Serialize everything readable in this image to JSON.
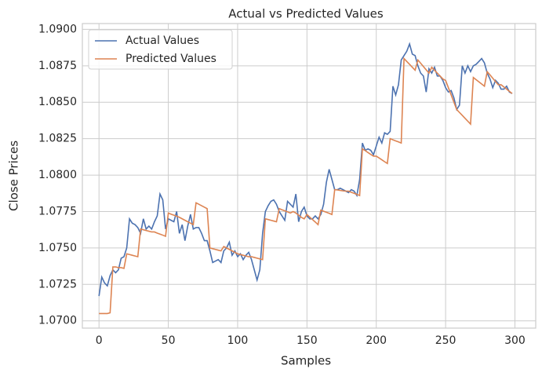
{
  "chart_data": {
    "type": "line",
    "title": "Actual vs Predicted Values",
    "x_label": "Samples",
    "y_label": "Close Prices",
    "grid": true,
    "legend": "upper left",
    "xlim": [
      -12,
      315
    ],
    "ylim": [
      1.0695,
      1.0904
    ],
    "xticks": [
      0,
      50,
      100,
      150,
      200,
      250,
      300
    ],
    "yticks": [
      {
        "value": 1.07,
        "label": "1.0700"
      },
      {
        "value": 1.0725,
        "label": "1.0725"
      },
      {
        "value": 1.075,
        "label": "1.0750"
      },
      {
        "value": 1.0775,
        "label": "1.0775"
      },
      {
        "value": 1.08,
        "label": "1.0800"
      },
      {
        "value": 1.0825,
        "label": "1.0825"
      },
      {
        "value": 1.085,
        "label": "1.0850"
      },
      {
        "value": 1.0875,
        "label": "1.0875"
      },
      {
        "value": 1.09,
        "label": "1.0900"
      }
    ],
    "x": [
      0,
      2,
      4,
      6,
      8,
      10,
      12,
      14,
      16,
      18,
      20,
      22,
      24,
      26,
      28,
      30,
      32,
      34,
      36,
      38,
      40,
      42,
      44,
      46,
      48,
      50,
      52,
      54,
      56,
      58,
      60,
      62,
      64,
      66,
      68,
      70,
      72,
      74,
      76,
      78,
      80,
      82,
      84,
      86,
      88,
      90,
      92,
      94,
      96,
      98,
      100,
      102,
      104,
      106,
      108,
      110,
      112,
      114,
      116,
      118,
      120,
      122,
      124,
      126,
      128,
      130,
      132,
      134,
      136,
      138,
      140,
      142,
      144,
      146,
      148,
      150,
      152,
      154,
      156,
      158,
      160,
      162,
      164,
      166,
      168,
      170,
      172,
      174,
      176,
      178,
      180,
      182,
      184,
      186,
      188,
      190,
      192,
      194,
      196,
      198,
      200,
      202,
      204,
      206,
      208,
      210,
      212,
      214,
      216,
      218,
      220,
      222,
      224,
      226,
      228,
      230,
      232,
      234,
      236,
      238,
      240,
      242,
      244,
      246,
      248,
      250,
      252,
      254,
      256,
      258,
      260,
      262,
      264,
      266,
      268,
      270,
      272,
      274,
      276,
      278,
      280,
      282,
      284,
      286,
      288,
      290,
      292,
      294,
      296,
      298
    ],
    "series": [
      {
        "name": "Actual Values",
        "color": "#4c72b0",
        "values": [
          1.0717,
          1.073,
          1.0726,
          1.0724,
          1.0731,
          1.0735,
          1.0733,
          1.0735,
          1.0743,
          1.0744,
          1.075,
          1.077,
          1.0767,
          1.0766,
          1.0764,
          1.076,
          1.077,
          1.0763,
          1.0765,
          1.0763,
          1.0768,
          1.0772,
          1.0787,
          1.0783,
          1.0763,
          1.077,
          1.0769,
          1.0768,
          1.0775,
          1.076,
          1.0766,
          1.0755,
          1.0765,
          1.0773,
          1.0763,
          1.0764,
          1.0764,
          1.076,
          1.0755,
          1.0755,
          1.0748,
          1.074,
          1.0741,
          1.0742,
          1.074,
          1.0748,
          1.075,
          1.0754,
          1.0745,
          1.0748,
          1.0744,
          1.0746,
          1.0742,
          1.0745,
          1.0747,
          1.0742,
          1.0735,
          1.0728,
          1.0735,
          1.076,
          1.0775,
          1.0779,
          1.0782,
          1.0783,
          1.078,
          1.0775,
          1.0772,
          1.0769,
          1.0782,
          1.078,
          1.0778,
          1.0787,
          1.0768,
          1.0775,
          1.0778,
          1.0772,
          1.077,
          1.077,
          1.0772,
          1.077,
          1.0773,
          1.078,
          1.0795,
          1.0804,
          1.0797,
          1.079,
          1.079,
          1.0791,
          1.079,
          1.0789,
          1.0788,
          1.079,
          1.0789,
          1.0786,
          1.0797,
          1.0822,
          1.0817,
          1.0818,
          1.0817,
          1.0814,
          1.082,
          1.0826,
          1.0822,
          1.0829,
          1.0828,
          1.083,
          1.0861,
          1.0855,
          1.0862,
          1.0879,
          1.0882,
          1.0885,
          1.089,
          1.0883,
          1.0882,
          1.0875,
          1.087,
          1.0868,
          1.0857,
          1.0873,
          1.087,
          1.0874,
          1.0868,
          1.0868,
          1.0865,
          1.086,
          1.0857,
          1.0858,
          1.0853,
          1.0845,
          1.0848,
          1.0875,
          1.087,
          1.0875,
          1.0871,
          1.0875,
          1.0876,
          1.0878,
          1.088,
          1.0877,
          1.087,
          1.0866,
          1.086,
          1.0865,
          1.0863,
          1.0859,
          1.0859,
          1.0861,
          1.0857,
          1.0856
        ]
      },
      {
        "name": "Predicted Values",
        "color": "#dd8452",
        "values": [
          1.0705,
          1.0705,
          1.0705,
          1.0705,
          1.07055,
          1.0737,
          1.0737,
          1.07365,
          1.07365,
          1.0736,
          1.0746,
          1.07455,
          1.0745,
          1.07445,
          1.0744,
          1.0763,
          1.07625,
          1.0762,
          1.07615,
          1.0761,
          1.0761,
          1.07602,
          1.07595,
          1.07588,
          1.0758,
          1.0774,
          1.07732,
          1.07725,
          1.07718,
          1.0771,
          1.077,
          1.0769,
          1.0768,
          1.0767,
          1.0766,
          1.0781,
          1.078,
          1.0779,
          1.0778,
          1.0777,
          1.075,
          1.07495,
          1.0749,
          1.07485,
          1.0748,
          1.0751,
          1.075,
          1.0749,
          1.0748,
          1.0747,
          1.0746,
          1.07455,
          1.0745,
          1.07445,
          1.0744,
          1.0744,
          1.07435,
          1.0743,
          1.07425,
          1.0742,
          1.077,
          1.07695,
          1.0769,
          1.07685,
          1.0768,
          1.0777,
          1.07762,
          1.07755,
          1.07748,
          1.0774,
          1.0775,
          1.0774,
          1.07725,
          1.0771,
          1.077,
          1.0773,
          1.07712,
          1.07695,
          1.07678,
          1.0766,
          1.0776,
          1.07752,
          1.07745,
          1.07738,
          1.0773,
          1.079,
          1.07898,
          1.07895,
          1.07892,
          1.0789,
          1.0789,
          1.07882,
          1.07875,
          1.07868,
          1.0786,
          1.0818,
          1.08168,
          1.08155,
          1.08142,
          1.0813,
          1.0813,
          1.08118,
          1.08105,
          1.08092,
          1.0808,
          1.0825,
          1.08242,
          1.08235,
          1.08228,
          1.0822,
          1.088,
          1.0878,
          1.0876,
          1.0874,
          1.0872,
          1.0879,
          1.08768,
          1.08745,
          1.08722,
          1.087,
          1.0874,
          1.0872,
          1.087,
          1.0868,
          1.0866,
          1.0865,
          1.086,
          1.0855,
          1.085,
          1.0845,
          1.0843,
          1.0841,
          1.0839,
          1.0837,
          1.0835,
          1.0867,
          1.08655,
          1.0864,
          1.08625,
          1.0861,
          1.0871,
          1.08688,
          1.08665,
          1.08642,
          1.0862,
          1.0862,
          1.08605,
          1.0859,
          1.08575,
          1.0856
        ]
      }
    ]
  }
}
